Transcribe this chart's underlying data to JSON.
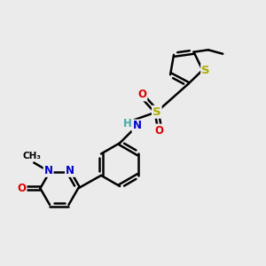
{
  "background_color": "#ebebeb",
  "bond_color": "#000000",
  "bond_width": 1.8,
  "atom_colors": {
    "N": "#0000cc",
    "O": "#dd0000",
    "S": "#aaaa00",
    "H": "#44aaaa",
    "C": "#000000"
  },
  "font_size": 8.5,
  "fig_size": [
    3.0,
    3.0
  ],
  "dpi": 100
}
